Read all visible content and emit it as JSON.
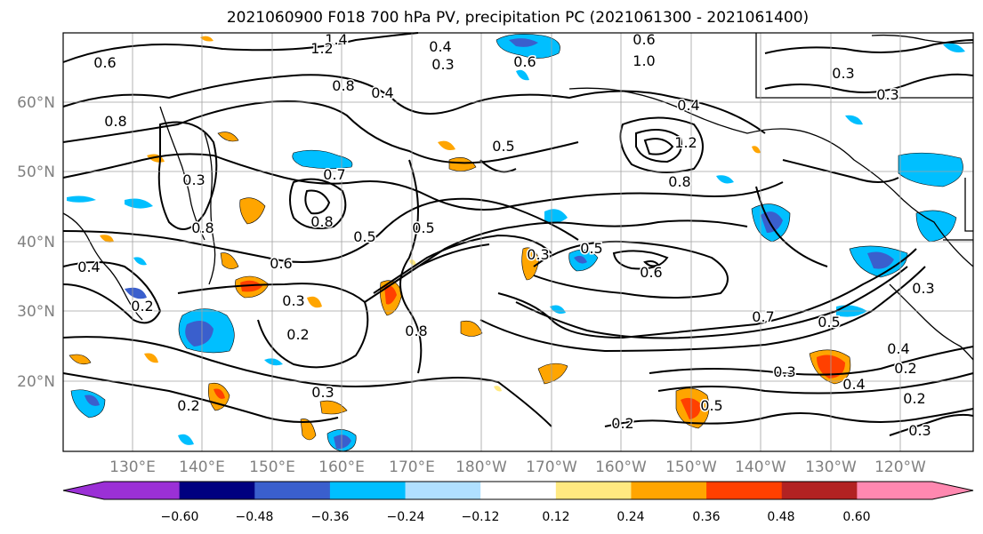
{
  "title": "2021060900 F018 700 hPa PV, precipitation PC (2021061300 - 2021061400)",
  "map": {
    "lat_ticks": [
      "60°N",
      "50°N",
      "40°N",
      "30°N",
      "20°N"
    ],
    "lon_ticks": [
      "130°E",
      "140°E",
      "150°E",
      "160°E",
      "170°E",
      "180°W",
      "170°W",
      "160°W",
      "150°W",
      "140°W",
      "130°W",
      "120°W"
    ],
    "contour_labels": [
      "0.6",
      "1.4",
      "1.2",
      "0.4",
      "0.3",
      "0.6",
      "0.6",
      "1.0",
      "0.4",
      "0.3",
      "0.3",
      "0.8",
      "0.8",
      "0.5",
      "1.2",
      "0.8",
      "0.3",
      "0.8",
      "0.4",
      "0.5",
      "0.8",
      "0.5",
      "0.7",
      "0.3",
      "0.5",
      "0.6",
      "0.6",
      "0.4",
      "0.2",
      "0.3",
      "0.2",
      "0.8",
      "0.7",
      "0.5",
      "0.3",
      "0.3",
      "0.4",
      "0.2",
      "0.4",
      "0.3",
      "0.2",
      "0.5",
      "0.2",
      "0.2",
      "0.3"
    ]
  },
  "colorbar": {
    "ticks": [
      "−0.60",
      "−0.48",
      "−0.36",
      "−0.24",
      "−0.12",
      "0.12",
      "0.24",
      "0.36",
      "0.48",
      "0.60"
    ],
    "colors": [
      "#9b30d6",
      "#000080",
      "#3a5fcd",
      "#00bfff",
      "#b0e0ff",
      "#ffffff",
      "#ffe980",
      "#ffa500",
      "#ff4000",
      "#b22222",
      "#ff88b0"
    ]
  }
}
